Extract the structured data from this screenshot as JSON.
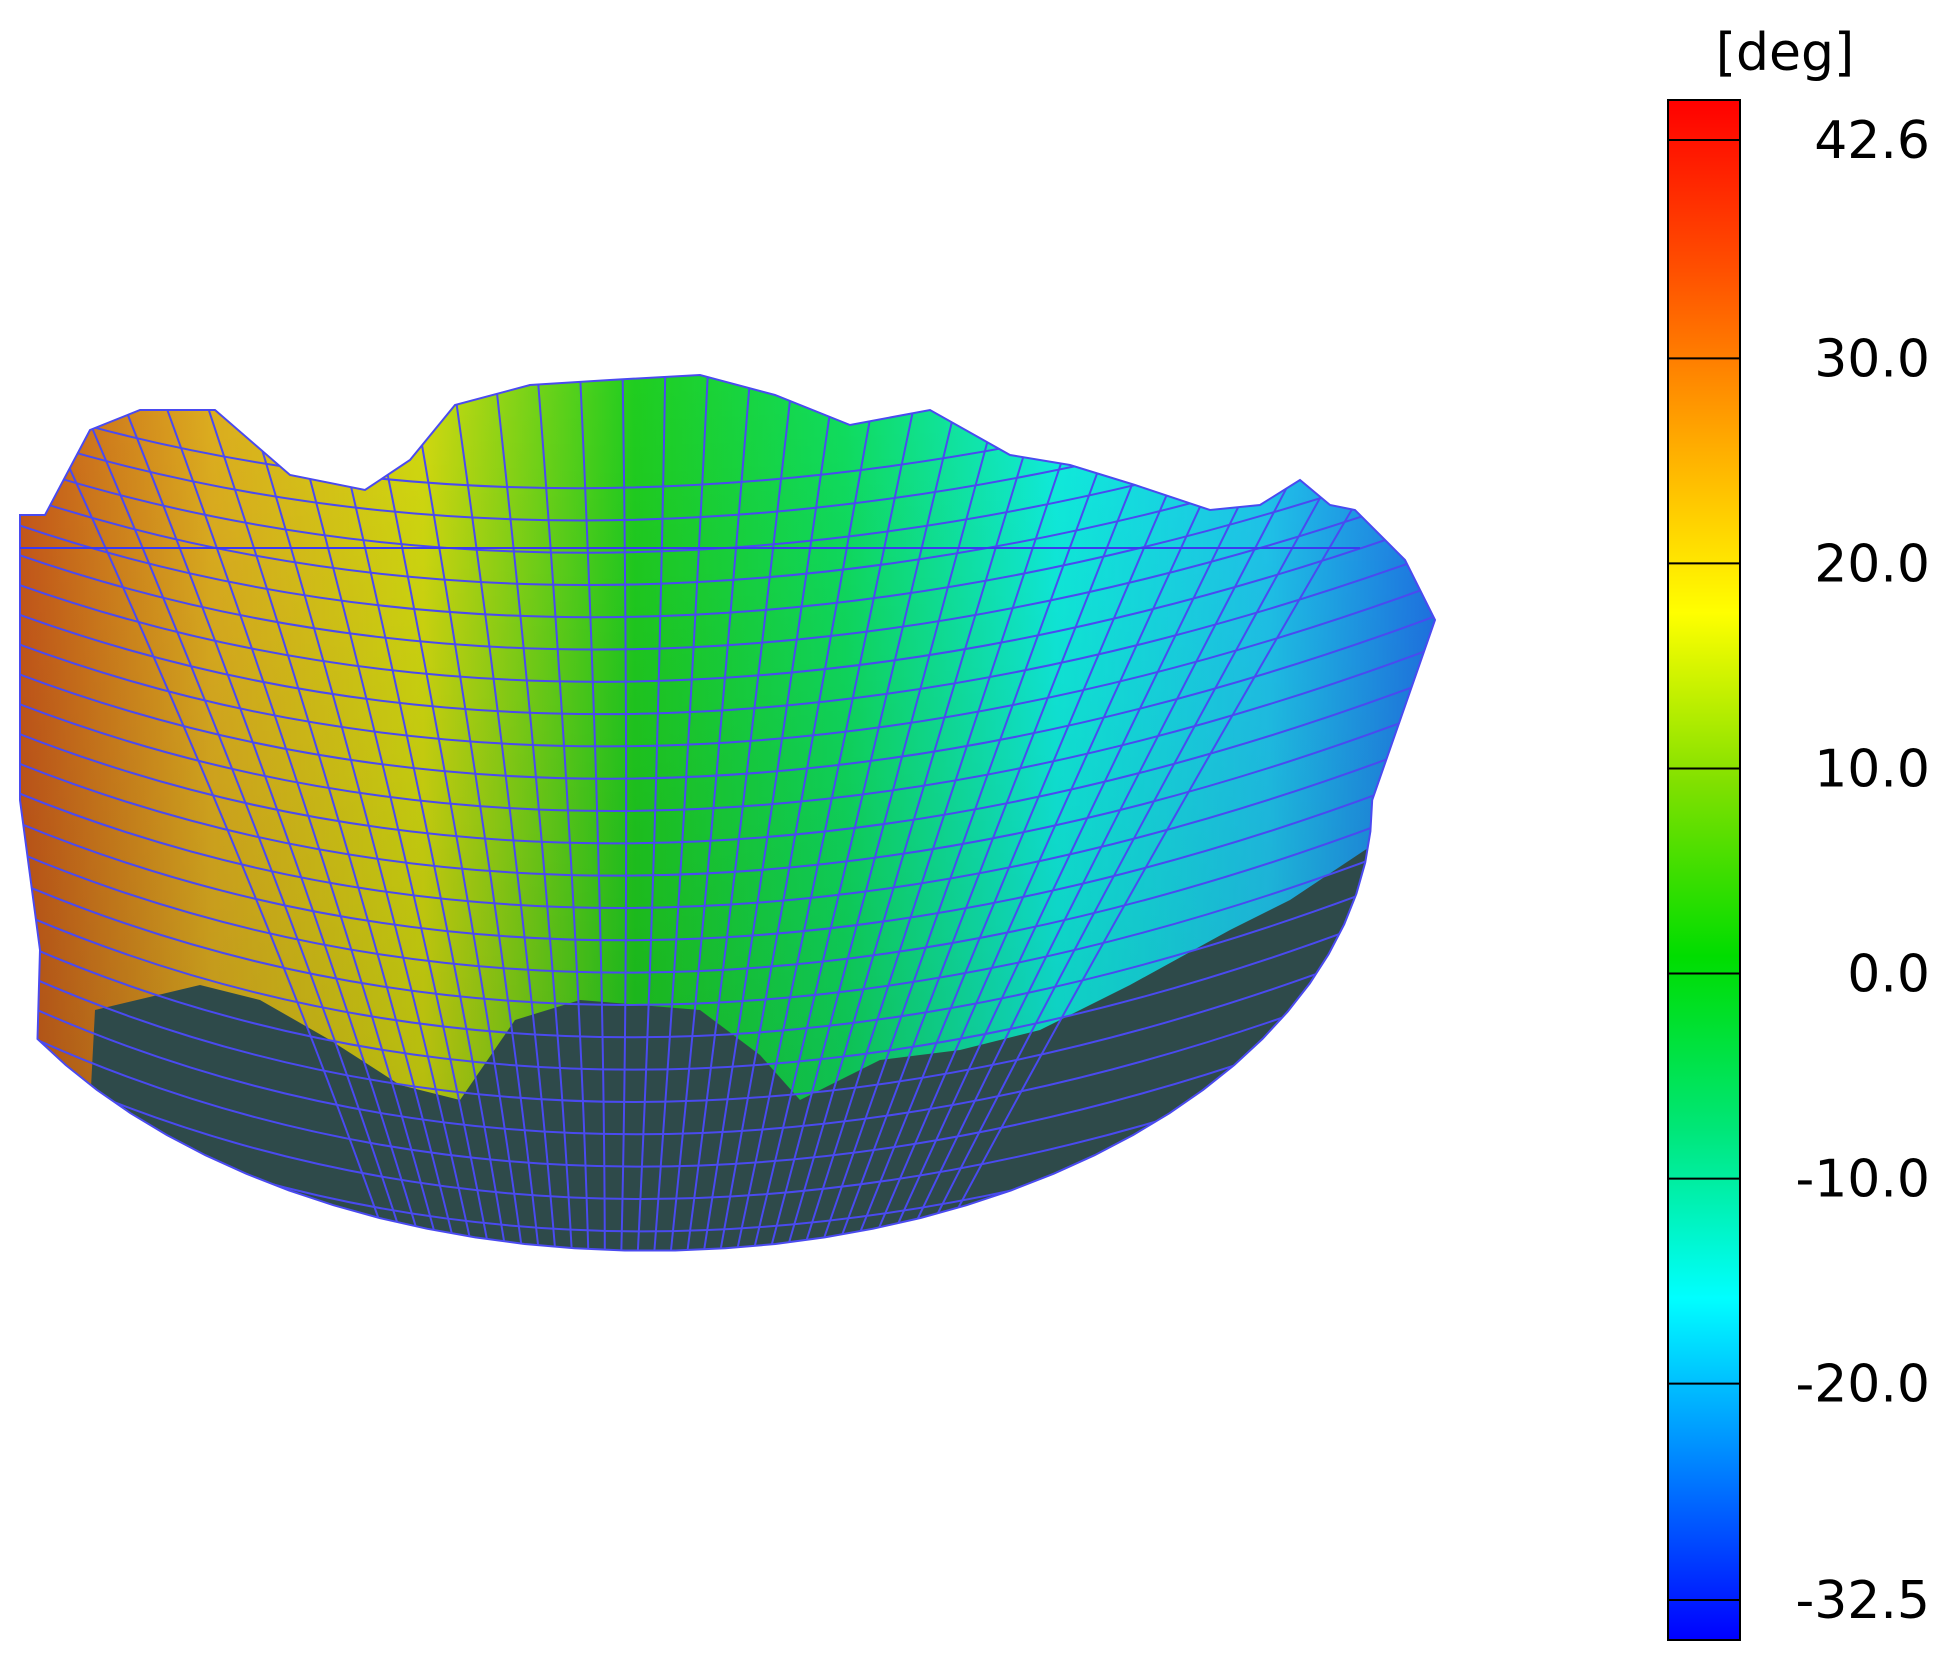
{
  "colorbar": {
    "unit": "[deg]",
    "ticks": [
      {
        "value": 42.6,
        "label": "42.6"
      },
      {
        "value": 30.0,
        "label": "30.0"
      },
      {
        "value": 20.0,
        "label": "20.0"
      },
      {
        "value": 10.0,
        "label": "10.0"
      },
      {
        "value": 0.0,
        "label": "0.0"
      },
      {
        "value": -10.0,
        "label": "-10.0"
      },
      {
        "value": -20.0,
        "label": "-20.0"
      },
      {
        "value": -32.5,
        "label": "-32.5"
      }
    ],
    "min": -32.5,
    "max": 42.6,
    "colors": [
      "#0000ff",
      "#0080ff",
      "#00ffff",
      "#00e676",
      "#00dd00",
      "#80e000",
      "#ffff00",
      "#ffaa00",
      "#ff5000",
      "#ff0000"
    ]
  },
  "surface": {
    "mesh_color": "#4a4af0",
    "shadow_color": "#2e4a4a",
    "gradient_stops": [
      "#c8501a",
      "#e0b020",
      "#d4dc10",
      "#20d020",
      "#10e060",
      "#10f0e0",
      "#20c8f0",
      "#2060e8"
    ]
  }
}
